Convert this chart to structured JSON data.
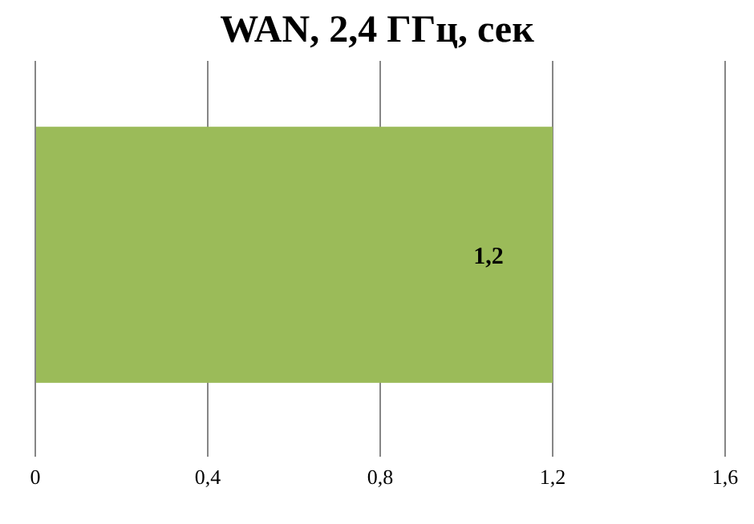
{
  "chart_data": {
    "type": "bar",
    "orientation": "horizontal",
    "title": "WAN, 2,4 ГГц, сек",
    "categories": [
      null
    ],
    "values": [
      1.2
    ],
    "color": "#9bbb59",
    "value_labels": [
      "1,2"
    ],
    "xlim": [
      0,
      1.6
    ],
    "xticks": [
      0,
      {
        "value": 0.4,
        "label": "0,4"
      },
      {
        "value": 0.8,
        "label": "0,8"
      },
      {
        "value": 1.2,
        "label": "1,2"
      },
      {
        "value": 1.6,
        "label": "1,6"
      }
    ],
    "grid": "x"
  }
}
